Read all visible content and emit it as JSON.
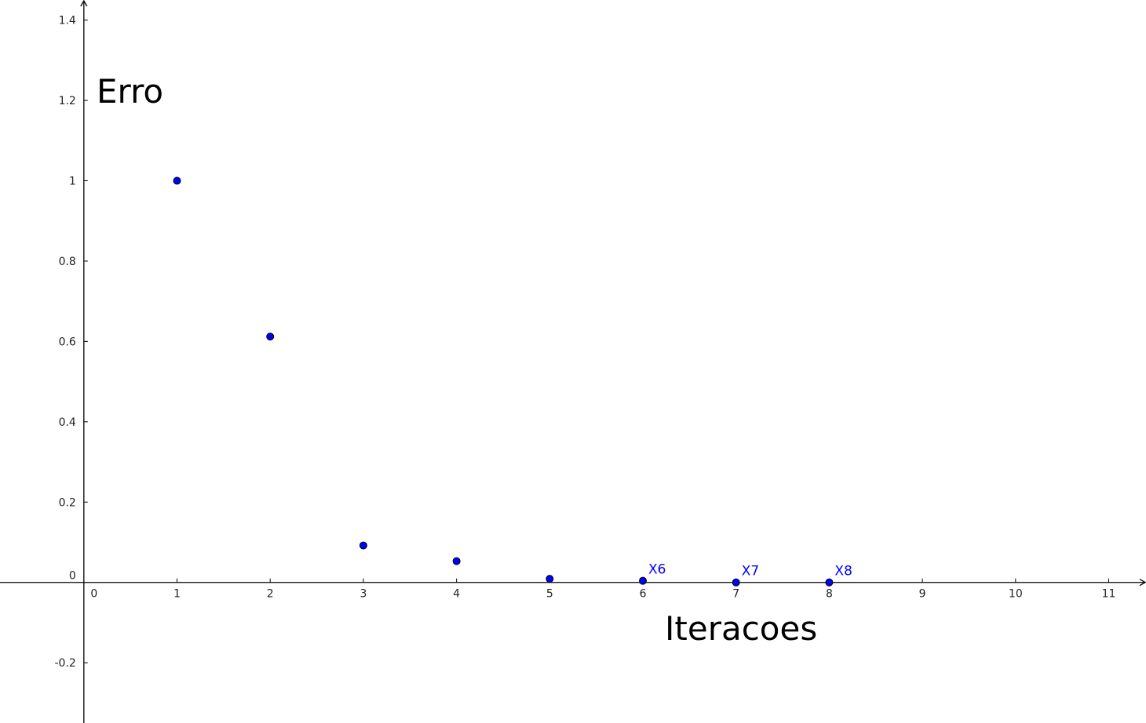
{
  "chart_data": {
    "type": "scatter",
    "xlabel": "Iteracoes",
    "ylabel": "Erro",
    "xlim": [
      -0.9,
      11.4
    ],
    "ylim": [
      -0.35,
      1.45
    ],
    "x_ticks": [
      0,
      1,
      2,
      3,
      4,
      5,
      6,
      7,
      8,
      9,
      10,
      11
    ],
    "y_ticks": [
      -0.2,
      0,
      0.2,
      0.4,
      0.6,
      0.8,
      1,
      1.2,
      1.4
    ],
    "x_tick_labels": [
      "0",
      "1",
      "2",
      "3",
      "4",
      "5",
      "6",
      "7",
      "8",
      "9",
      "10",
      "11"
    ],
    "y_tick_labels": [
      "-0.2",
      "0",
      "0.2",
      "0.4",
      "0.6",
      "0.8",
      "1",
      "1.2",
      "1.4"
    ],
    "grid": false,
    "point_color": "#0000ff",
    "label_color": "#0000ff",
    "points": [
      {
        "x": 1,
        "y": 1.0,
        "label": ""
      },
      {
        "x": 2,
        "y": 0.612,
        "label": ""
      },
      {
        "x": 3,
        "y": 0.092,
        "label": ""
      },
      {
        "x": 4,
        "y": 0.053,
        "label": ""
      },
      {
        "x": 5,
        "y": 0.009,
        "label": ""
      },
      {
        "x": 6,
        "y": 0.004,
        "label": "X6"
      },
      {
        "x": 7,
        "y": 0.0,
        "label": "X7"
      },
      {
        "x": 8,
        "y": 0.0,
        "label": "X8"
      }
    ]
  }
}
